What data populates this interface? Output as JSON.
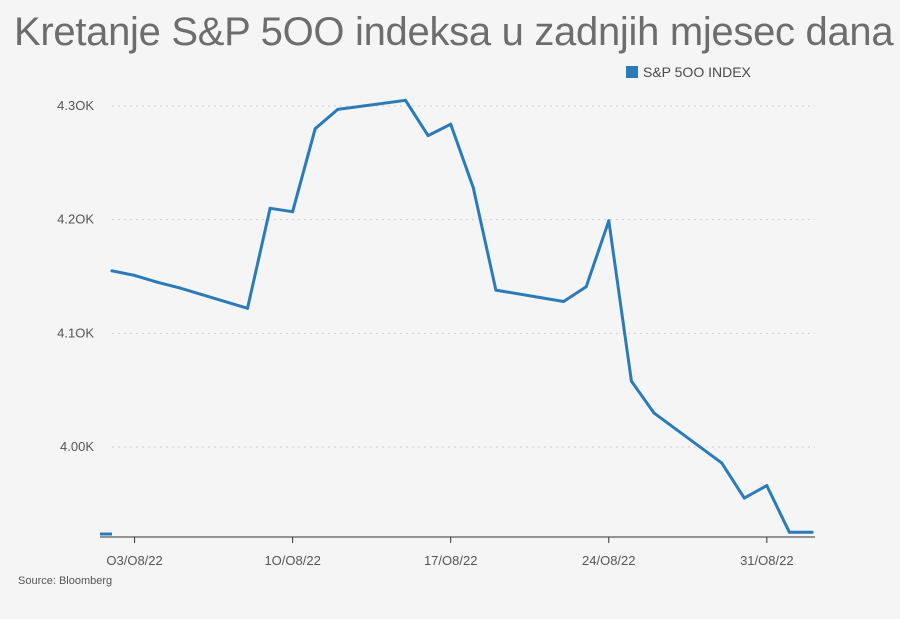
{
  "title": "Kretanje S&P 5OO indeksa u zadnjih mjesec dana",
  "source": "Source: Bloomberg",
  "colors": {
    "line": "#2b7bb9",
    "grid": "#cccccc",
    "baseline": "#333333"
  },
  "chart_data": {
    "type": "line",
    "title": "Kretanje S&P 5OO indeksa u zadnjih mjesec dana",
    "xlabel": "",
    "ylabel": "",
    "legend_position": "top-right",
    "grid": true,
    "ylim": [
      3925,
      4310
    ],
    "yticks": [
      {
        "value": 4000,
        "label": "4.00K"
      },
      {
        "value": 4100,
        "label": "4.1OK"
      },
      {
        "value": 4200,
        "label": "4.2OK"
      },
      {
        "value": 4300,
        "label": "4.3OK"
      }
    ],
    "xticks": [
      {
        "value": "2022-08-03",
        "label": "O3/O8/22"
      },
      {
        "value": "2022-08-10",
        "label": "1O/O8/22"
      },
      {
        "value": "2022-08-17",
        "label": "17/O8/22"
      },
      {
        "value": "2022-08-24",
        "label": "24/O8/22"
      },
      {
        "value": "2022-08-31",
        "label": "31/O8/22"
      }
    ],
    "series": [
      {
        "name": "S&P 5OO INDEX",
        "x": [
          "2022-08-02",
          "2022-08-03",
          "2022-08-04",
          "2022-08-05",
          "2022-08-08",
          "2022-08-09",
          "2022-08-10",
          "2022-08-11",
          "2022-08-12",
          "2022-08-15",
          "2022-08-16",
          "2022-08-17",
          "2022-08-18",
          "2022-08-19",
          "2022-08-22",
          "2022-08-23",
          "2022-08-24",
          "2022-08-25",
          "2022-08-26",
          "2022-08-29",
          "2022-08-30",
          "2022-08-31",
          "2022-09-01",
          "2022-09-02"
        ],
        "values": [
          4155,
          4151,
          4145,
          4140,
          4122,
          4210,
          4207,
          4280,
          4297,
          4305,
          4274,
          4284,
          4228,
          4138,
          4128,
          4141,
          4199,
          4058,
          4030,
          3986,
          3955,
          3966,
          3925,
          3925
        ]
      }
    ]
  }
}
